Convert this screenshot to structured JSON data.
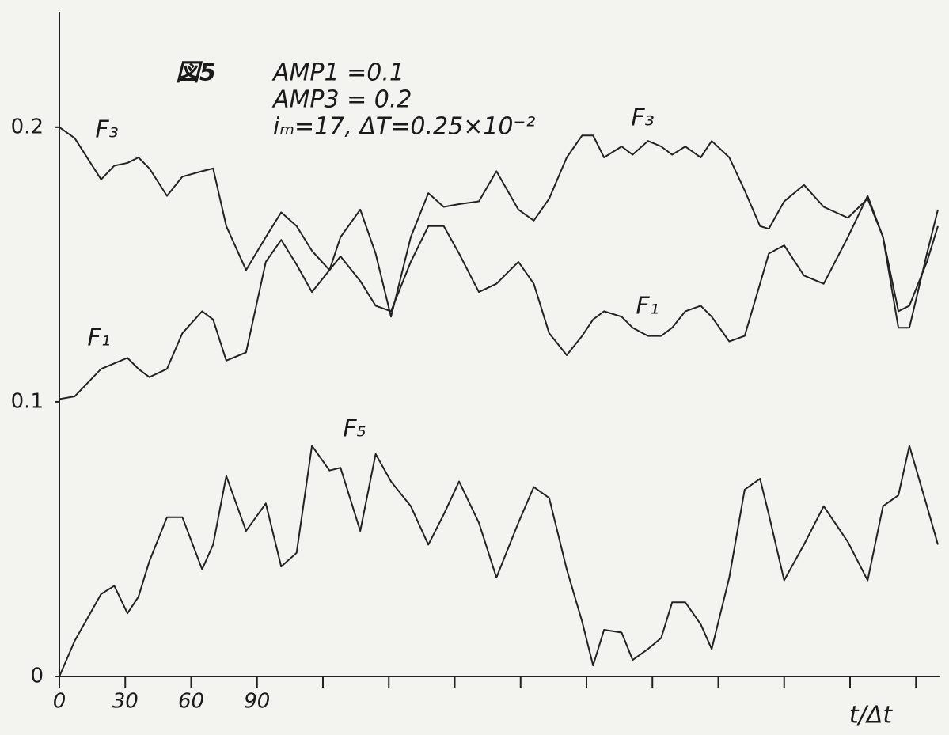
{
  "chart_data": {
    "type": "line",
    "annotations": [
      "図5",
      "AMP1 =0.1",
      "AMP3 = 0.2",
      "iₘ=17, ΔT=0.25×10⁻²",
      "F₃",
      "F₁"
    ],
    "x_label": "t/Δt",
    "x": [
      0,
      7,
      19,
      25,
      31,
      36,
      41,
      49,
      56,
      65,
      70,
      76,
      85,
      94,
      101,
      108,
      115,
      123,
      128,
      137,
      144,
      151,
      160,
      168,
      175,
      182,
      191,
      199,
      209,
      216,
      223,
      231,
      238,
      243,
      248,
      256,
      261,
      268,
      274,
      279,
      285,
      292,
      297,
      305,
      312,
      319,
      323,
      330,
      339,
      348,
      359,
      368,
      375,
      382,
      387,
      395,
      400
    ],
    "series": [
      {
        "name": "F₃",
        "color": "#222222",
        "values": [
          0.2,
          0.196,
          0.181,
          0.186,
          0.187,
          0.189,
          0.185,
          0.175,
          0.182,
          0.184,
          0.185,
          0.164,
          0.148,
          0.16,
          0.169,
          0.164,
          0.155,
          0.148,
          0.16,
          0.17,
          0.154,
          0.131,
          0.16,
          0.176,
          0.171,
          0.172,
          0.173,
          0.184,
          0.17,
          0.166,
          0.174,
          0.189,
          0.197,
          0.197,
          0.189,
          0.193,
          0.19,
          0.195,
          0.193,
          0.19,
          0.193,
          0.189,
          0.195,
          0.189,
          0.177,
          0.164,
          0.163,
          0.173,
          0.179,
          0.171,
          0.167,
          0.174,
          0.16,
          0.133,
          0.135,
          0.151,
          0.164
        ]
      },
      {
        "name": "F₁",
        "color": "#222222",
        "values": [
          0.101,
          0.102,
          0.112,
          0.114,
          0.116,
          0.112,
          0.109,
          0.112,
          0.125,
          0.133,
          0.13,
          0.115,
          0.118,
          0.151,
          0.159,
          0.15,
          0.14,
          0.148,
          0.153,
          0.144,
          0.135,
          0.133,
          0.151,
          0.164,
          0.164,
          0.154,
          0.14,
          0.143,
          0.151,
          0.143,
          0.125,
          0.117,
          0.124,
          0.13,
          0.133,
          0.131,
          0.127,
          0.124,
          0.124,
          0.127,
          0.133,
          0.135,
          0.131,
          0.122,
          0.124,
          0.143,
          0.154,
          0.157,
          0.146,
          0.143,
          0.16,
          0.175,
          0.16,
          0.127,
          0.127,
          0.154,
          0.17
        ]
      },
      {
        "name": "F₅",
        "color": "#222222",
        "values": [
          0,
          0.013,
          0.03,
          0.033,
          0.023,
          0.029,
          0.042,
          0.058,
          0.058,
          0.039,
          0.048,
          0.073,
          0.053,
          0.063,
          0.04,
          0.045,
          0.084,
          0.075,
          0.076,
          0.053,
          0.081,
          0.071,
          0.062,
          0.048,
          0.059,
          0.071,
          0.056,
          0.036,
          0.056,
          0.069,
          0.065,
          0.039,
          0.02,
          0.004,
          0.017,
          0.016,
          0.006,
          0.01,
          0.014,
          0.027,
          0.027,
          0.019,
          0.01,
          0.036,
          0.068,
          0.072,
          0.059,
          0.035,
          0.048,
          0.062,
          0.049,
          0.035,
          0.062,
          0.066,
          0.084,
          0.062,
          0.048
        ]
      }
    ],
    "xlim": [
      0,
      400
    ],
    "xticks": [
      0,
      30,
      60,
      90,
      {
        "value": 120,
        "label": null
      },
      {
        "value": 150,
        "label": null
      },
      {
        "value": 180,
        "label": null
      },
      {
        "value": 210,
        "label": null
      },
      {
        "value": 240,
        "label": null
      },
      {
        "value": 270,
        "label": null
      },
      {
        "value": 300,
        "label": null
      },
      {
        "value": 330,
        "label": null
      },
      {
        "value": 360,
        "label": null
      },
      {
        "value": 390,
        "label": null
      }
    ],
    "ylim": [
      0,
      0.24
    ],
    "yticks": [
      0,
      0.1,
      0.2
    ]
  }
}
